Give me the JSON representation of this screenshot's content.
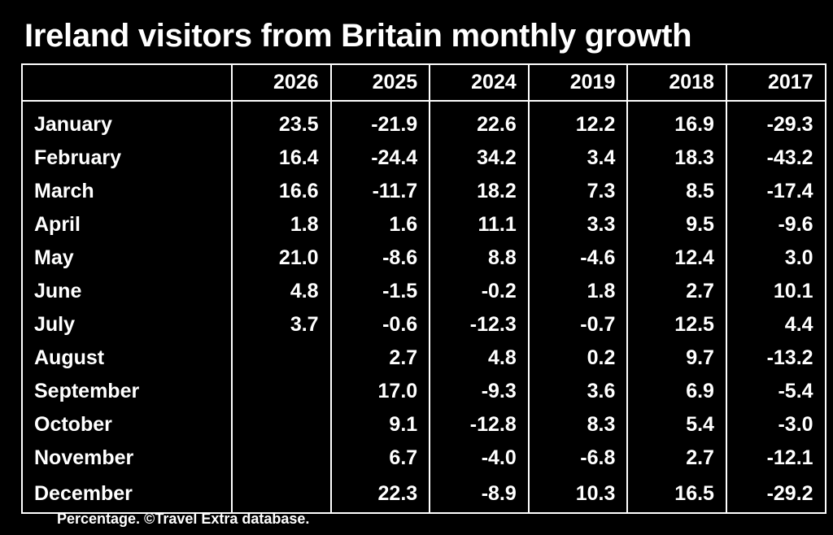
{
  "title": "Ireland visitors from Britain monthly growth",
  "footnote": "Percentage. ©Travel Extra database.",
  "chart_data": {
    "type": "table",
    "title": "Ireland visitors from Britain monthly growth",
    "columns": [
      "2026",
      "2025",
      "2024",
      "2019",
      "2018",
      "2017"
    ],
    "rows": [
      {
        "label": "January",
        "values": [
          "23.5",
          "-21.9",
          "22.6",
          "12.2",
          "16.9",
          "-29.3"
        ]
      },
      {
        "label": "February",
        "values": [
          "16.4",
          "-24.4",
          "34.2",
          "3.4",
          "18.3",
          "-43.2"
        ]
      },
      {
        "label": "March",
        "values": [
          "16.6",
          "-11.7",
          "18.2",
          "7.3",
          "8.5",
          "-17.4"
        ]
      },
      {
        "label": "April",
        "values": [
          "1.8",
          "1.6",
          "11.1",
          "3.3",
          "9.5",
          "-9.6"
        ]
      },
      {
        "label": "May",
        "values": [
          "21.0",
          "-8.6",
          "8.8",
          "-4.6",
          "12.4",
          "3.0"
        ]
      },
      {
        "label": "June",
        "values": [
          "4.8",
          "-1.5",
          "-0.2",
          "1.8",
          "2.7",
          "10.1"
        ]
      },
      {
        "label": "July",
        "values": [
          "3.7",
          "-0.6",
          "-12.3",
          "-0.7",
          "12.5",
          "4.4"
        ]
      },
      {
        "label": "August",
        "values": [
          "",
          "2.7",
          "4.8",
          "0.2",
          "9.7",
          "-13.2"
        ]
      },
      {
        "label": "September",
        "values": [
          "",
          "17.0",
          "-9.3",
          "3.6",
          "6.9",
          "-5.4"
        ]
      },
      {
        "label": "October",
        "values": [
          "",
          "9.1",
          "-12.8",
          "8.3",
          "5.4",
          "-3.0"
        ]
      },
      {
        "label": "November",
        "values": [
          "",
          "6.7",
          "-4.0",
          "-6.8",
          "2.7",
          "-12.1"
        ]
      },
      {
        "label": "December",
        "values": [
          "",
          "22.3",
          "-8.9",
          "10.3",
          "16.5",
          "-29.2"
        ]
      }
    ]
  },
  "colors": {
    "background": "#000000",
    "text": "#ffffff",
    "grid": "#ffffff"
  }
}
